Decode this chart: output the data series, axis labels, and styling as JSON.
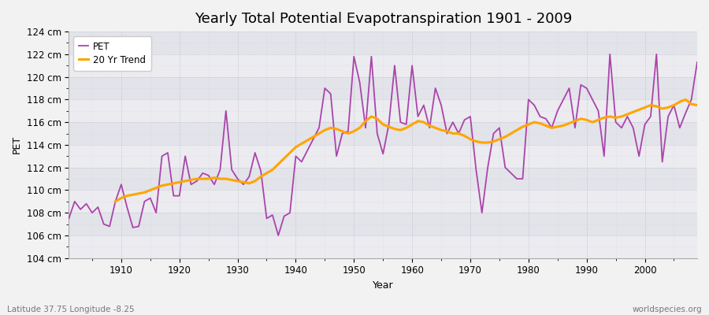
{
  "title": "Yearly Total Potential Evapotranspiration 1901 - 2009",
  "xlabel": "Year",
  "ylabel": "PET",
  "subtitle_left": "Latitude 37.75 Longitude -8.25",
  "subtitle_right": "worldspecies.org",
  "ylim": [
    104,
    124
  ],
  "yticks": [
    104,
    106,
    108,
    110,
    112,
    114,
    116,
    118,
    120,
    122,
    124
  ],
  "ytick_labels": [
    "104 cm",
    "106 cm",
    "108 cm",
    "110 cm",
    "112 cm",
    "114 cm",
    "116 cm",
    "118 cm",
    "120 cm",
    "122 cm",
    "124 cm"
  ],
  "xlim": [
    1901,
    2009
  ],
  "pet_color": "#AA44AA",
  "trend_color": "#FFA500",
  "fig_bg_color": "#F0F0F0",
  "plot_bg_color": "#E8E8EC",
  "legend_labels": [
    "PET",
    "20 Yr Trend"
  ],
  "years": [
    1901,
    1902,
    1903,
    1904,
    1905,
    1906,
    1907,
    1908,
    1909,
    1910,
    1911,
    1912,
    1913,
    1914,
    1915,
    1916,
    1917,
    1918,
    1919,
    1920,
    1921,
    1922,
    1923,
    1924,
    1925,
    1926,
    1927,
    1928,
    1929,
    1930,
    1931,
    1932,
    1933,
    1934,
    1935,
    1936,
    1937,
    1938,
    1939,
    1940,
    1941,
    1942,
    1943,
    1944,
    1945,
    1946,
    1947,
    1948,
    1949,
    1950,
    1951,
    1952,
    1953,
    1954,
    1955,
    1956,
    1957,
    1958,
    1959,
    1960,
    1961,
    1962,
    1963,
    1964,
    1965,
    1966,
    1967,
    1968,
    1969,
    1970,
    1971,
    1972,
    1973,
    1974,
    1975,
    1976,
    1977,
    1978,
    1979,
    1980,
    1981,
    1982,
    1983,
    1984,
    1985,
    1986,
    1987,
    1988,
    1989,
    1990,
    1991,
    1992,
    1993,
    1994,
    1995,
    1996,
    1997,
    1998,
    1999,
    2000,
    2001,
    2002,
    2003,
    2004,
    2005,
    2006,
    2007,
    2008,
    2009
  ],
  "pet_values": [
    107.5,
    109.0,
    108.3,
    108.8,
    108.0,
    108.5,
    107.0,
    106.8,
    109.0,
    110.5,
    108.5,
    106.7,
    106.8,
    109.0,
    109.3,
    108.0,
    113.0,
    113.3,
    109.5,
    109.5,
    113.0,
    110.5,
    110.8,
    111.5,
    111.3,
    110.5,
    111.8,
    117.0,
    111.8,
    111.0,
    110.5,
    111.2,
    113.3,
    111.7,
    107.5,
    107.8,
    106.0,
    107.7,
    108.0,
    113.0,
    112.5,
    113.5,
    114.5,
    115.5,
    119.0,
    118.5,
    113.0,
    115.0,
    115.2,
    121.8,
    119.5,
    115.5,
    121.8,
    115.0,
    113.2,
    115.8,
    121.0,
    116.0,
    115.8,
    121.0,
    116.5,
    117.5,
    115.5,
    119.0,
    117.5,
    115.0,
    116.0,
    115.0,
    116.2,
    116.5,
    111.8,
    108.0,
    112.0,
    115.0,
    115.5,
    112.0,
    111.5,
    111.0,
    111.0,
    118.0,
    117.5,
    116.5,
    116.3,
    115.5,
    117.0,
    118.0,
    119.0,
    115.5,
    119.3,
    119.0,
    118.0,
    117.0,
    113.0,
    122.0,
    116.0,
    115.5,
    116.5,
    115.5,
    113.0,
    115.8,
    116.5,
    122.0,
    112.5,
    116.5,
    117.5,
    115.5,
    116.8,
    118.0,
    121.3
  ],
  "trend_years": [
    1909,
    1910,
    1911,
    1912,
    1913,
    1914,
    1915,
    1916,
    1917,
    1918,
    1919,
    1920,
    1921,
    1922,
    1923,
    1924,
    1925,
    1926,
    1927,
    1928,
    1929,
    1930,
    1931,
    1932,
    1933,
    1934,
    1935,
    1936,
    1937,
    1938,
    1939,
    1940,
    1941,
    1942,
    1943,
    1944,
    1945,
    1946,
    1947,
    1948,
    1949,
    1950,
    1951,
    1952,
    1953,
    1954,
    1955,
    1956,
    1957,
    1958,
    1959,
    1960,
    1961,
    1962,
    1963,
    1964,
    1965,
    1966,
    1967,
    1968,
    1969,
    1970,
    1971,
    1972,
    1973,
    1974,
    1975,
    1976,
    1977,
    1978,
    1979,
    1980,
    1981,
    1982,
    1983,
    1984,
    1985,
    1986,
    1987,
    1988,
    1989,
    1990,
    1991,
    1992,
    1993,
    1994,
    1995,
    1996,
    1997,
    1998,
    1999,
    2000,
    2001,
    2002,
    2003,
    2004,
    2005,
    2006,
    2007,
    2008,
    2009
  ],
  "trend_values": [
    109.0,
    109.3,
    109.5,
    109.6,
    109.7,
    109.8,
    110.0,
    110.2,
    110.4,
    110.5,
    110.6,
    110.7,
    110.8,
    110.9,
    111.0,
    111.0,
    111.0,
    111.1,
    111.0,
    111.0,
    110.9,
    110.8,
    110.7,
    110.6,
    110.8,
    111.2,
    111.5,
    111.8,
    112.3,
    112.8,
    113.3,
    113.8,
    114.1,
    114.4,
    114.7,
    115.0,
    115.3,
    115.5,
    115.4,
    115.2,
    115.0,
    115.2,
    115.5,
    116.1,
    116.5,
    116.3,
    115.8,
    115.6,
    115.4,
    115.3,
    115.5,
    115.8,
    116.1,
    116.0,
    115.7,
    115.5,
    115.3,
    115.2,
    115.0,
    115.0,
    114.8,
    114.5,
    114.3,
    114.2,
    114.2,
    114.3,
    114.5,
    114.7,
    115.0,
    115.3,
    115.6,
    115.8,
    116.0,
    115.9,
    115.7,
    115.5,
    115.6,
    115.7,
    115.9,
    116.1,
    116.3,
    116.2,
    116.0,
    116.2,
    116.4,
    116.5,
    116.4,
    116.5,
    116.7,
    116.9,
    117.1,
    117.3,
    117.5,
    117.4,
    117.2,
    117.3,
    117.5,
    117.8,
    118.0,
    117.6,
    117.5
  ]
}
